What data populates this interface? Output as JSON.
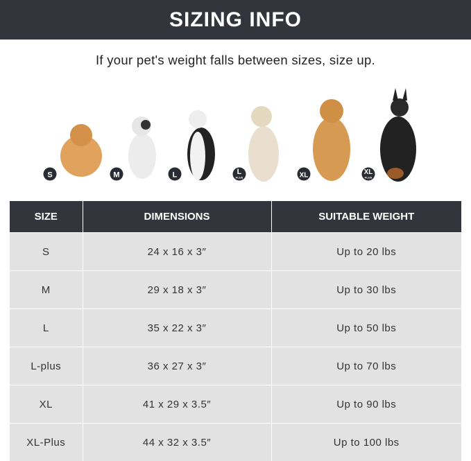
{
  "title": "SIZING INFO",
  "subtitle": "If your pet's weight falls between sizes, size up.",
  "badges": [
    {
      "main": "S",
      "sub": ""
    },
    {
      "main": "M",
      "sub": ""
    },
    {
      "main": "L",
      "sub": ""
    },
    {
      "main": "L",
      "sub": "PLUS"
    },
    {
      "main": "XL",
      "sub": ""
    },
    {
      "main": "XL",
      "sub": "PLUS"
    }
  ],
  "table": {
    "headers": [
      "SIZE",
      "DIMENSIONS",
      "SUITABLE WEIGHT"
    ],
    "rows": [
      [
        "S",
        "24 x 16 x 3″",
        "Up to 20 lbs"
      ],
      [
        "M",
        "29 x 18 x 3″",
        "Up to 30 lbs"
      ],
      [
        "L",
        "35 x 22 x 3″",
        "Up to 50 lbs"
      ],
      [
        "L-plus",
        "36 x 27 x 3″",
        "Up to 70 lbs"
      ],
      [
        "XL",
        "41 x 29 x 3.5″",
        "Up to 90 lbs"
      ],
      [
        "XL-Plus",
        "44 x 32 x 3.5″",
        "Up to 100 lbs"
      ]
    ]
  },
  "colors": {
    "dark": "#33353d",
    "row": "#e2e2e2"
  }
}
